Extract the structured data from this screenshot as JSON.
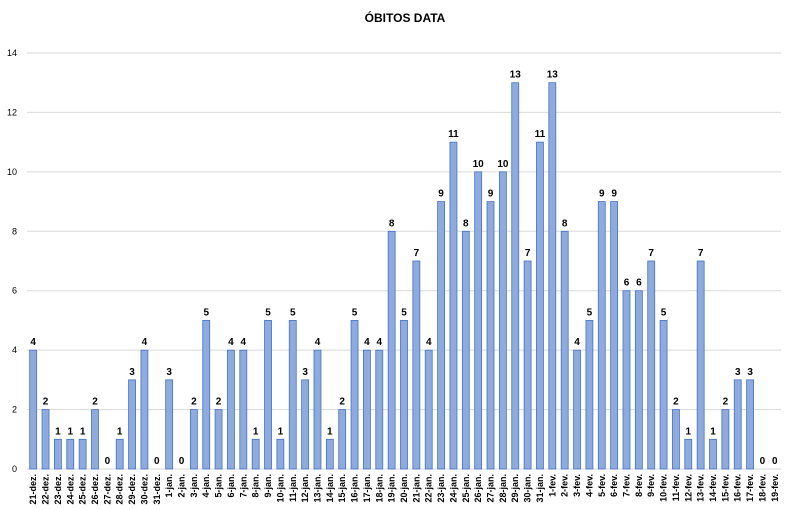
{
  "chart_data": {
    "type": "bar",
    "title": "ÓBITOS DATA",
    "categories": [
      "21-dez.",
      "22-dez.",
      "23-dez.",
      "24-dez.",
      "25-dez.",
      "26-dez.",
      "27-dez.",
      "28-dez.",
      "29-dez.",
      "30-dez.",
      "31-dez.",
      "1-jan.",
      "2-jan.",
      "3-jan.",
      "4-jan.",
      "5-jan.",
      "6-jan.",
      "7-jan.",
      "8-jan.",
      "9-jan.",
      "10-jan.",
      "11-jan.",
      "12-jan.",
      "13-jan.",
      "14-jan.",
      "15-jan.",
      "16-jan.",
      "17-jan.",
      "18-jan.",
      "19-jan.",
      "20-jan.",
      "21-jan.",
      "22-jan.",
      "23-jan.",
      "24-jan.",
      "25-jan.",
      "26-jan.",
      "27-jan.",
      "28-jan.",
      "29-jan.",
      "30-jan.",
      "31-jan.",
      "1-fev.",
      "2-fev.",
      "3-fev.",
      "4-fev.",
      "5-fev.",
      "6-fev.",
      "7-fev.",
      "8-fev.",
      "9-fev.",
      "10-fev.",
      "11-fev.",
      "12-fev.",
      "13-fev.",
      "14-fev.",
      "15-fev.",
      "16-fev.",
      "17-fev.",
      "18-fev.",
      "19-fev."
    ],
    "values": [
      4,
      2,
      1,
      1,
      1,
      2,
      0,
      1,
      3,
      4,
      0,
      3,
      0,
      2,
      5,
      2,
      4,
      4,
      1,
      5,
      1,
      5,
      3,
      4,
      1,
      2,
      5,
      4,
      4,
      8,
      5,
      7,
      4,
      9,
      11,
      8,
      10,
      9,
      10,
      13,
      7,
      11,
      13,
      8,
      4,
      5,
      9,
      9,
      6,
      6,
      7,
      5,
      2,
      1,
      7,
      1,
      2,
      3,
      3,
      0,
      0
    ],
    "color": "#8faadc",
    "edge_color": "#4472c4",
    "ylim": [
      0,
      14
    ],
    "yticks": [
      0,
      2,
      4,
      6,
      8,
      10,
      12,
      14
    ],
    "grid": true
  }
}
